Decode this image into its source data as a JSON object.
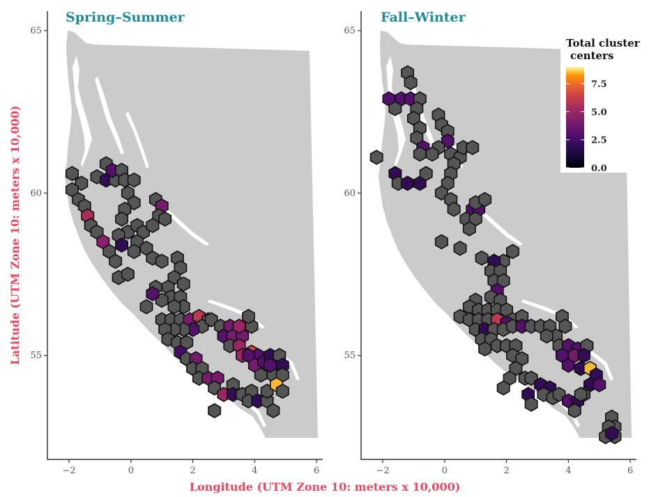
{
  "chart_data": [
    {
      "type": "heatmap",
      "title": "Spring–Summer",
      "xlim": [
        -2.7,
        6.2
      ],
      "ylim": [
        51.8,
        65.6
      ],
      "x_ticks": [
        -2,
        0,
        2,
        4,
        6
      ],
      "y_ticks": [
        55,
        60,
        65
      ],
      "cells": [
        [
          -1.9,
          60.6,
          0
        ],
        [
          -1.6,
          60.3,
          0
        ],
        [
          -1.9,
          60.1,
          0
        ],
        [
          -1.7,
          59.8,
          0
        ],
        [
          -1.5,
          59.6,
          0
        ],
        [
          -1.4,
          59.3,
          5.5
        ],
        [
          -1.3,
          59.0,
          0
        ],
        [
          -1.1,
          58.8,
          0
        ],
        [
          -0.9,
          58.5,
          4.5
        ],
        [
          -0.7,
          58.2,
          0
        ],
        [
          -0.5,
          57.9,
          0
        ],
        [
          -0.4,
          57.4,
          0
        ],
        [
          -0.1,
          57.5,
          0
        ],
        [
          -0.8,
          60.9,
          0
        ],
        [
          -1.1,
          60.5,
          0
        ],
        [
          -0.8,
          60.4,
          2
        ],
        [
          -0.5,
          60.4,
          0
        ],
        [
          -0.6,
          60.7,
          3
        ],
        [
          -0.3,
          60.7,
          0
        ],
        [
          -0.2,
          60.4,
          0
        ],
        [
          0.1,
          60.4,
          0
        ],
        [
          -0.1,
          60.0,
          0
        ],
        [
          0.1,
          59.7,
          0
        ],
        [
          -0.2,
          59.5,
          0
        ],
        [
          -0.3,
          59.2,
          0
        ],
        [
          -0.1,
          58.8,
          0
        ],
        [
          -0.4,
          58.7,
          0
        ],
        [
          -0.3,
          58.4,
          2
        ],
        [
          0.2,
          59.0,
          0
        ],
        [
          0.4,
          58.8,
          0
        ],
        [
          0.2,
          58.5,
          0
        ],
        [
          0.1,
          58.2,
          0
        ],
        [
          0.5,
          58.3,
          0
        ],
        [
          0.7,
          58.0,
          0
        ],
        [
          1.0,
          57.9,
          0
        ],
        [
          0.8,
          59.8,
          0
        ],
        [
          1.0,
          59.6,
          4
        ],
        [
          0.9,
          59.3,
          0
        ],
        [
          0.7,
          59.0,
          0
        ],
        [
          1.1,
          59.2,
          0
        ],
        [
          1.5,
          58.0,
          0
        ],
        [
          1.6,
          57.7,
          0
        ],
        [
          1.4,
          57.4,
          0
        ],
        [
          1.7,
          57.2,
          0
        ],
        [
          1.2,
          57.1,
          0
        ],
        [
          0.8,
          57.1,
          0
        ],
        [
          1.3,
          56.8,
          0
        ],
        [
          1.0,
          56.7,
          0
        ],
        [
          0.7,
          56.9,
          3
        ],
        [
          0.5,
          56.5,
          0
        ],
        [
          1.6,
          56.8,
          0
        ],
        [
          1.7,
          56.5,
          0
        ],
        [
          1.4,
          56.5,
          0
        ],
        [
          1.0,
          56.1,
          0
        ],
        [
          1.3,
          56.1,
          0
        ],
        [
          1.6,
          56.1,
          0
        ],
        [
          1.9,
          56.1,
          4
        ],
        [
          2.2,
          56.2,
          6
        ],
        [
          2.5,
          56.1,
          0
        ],
        [
          2.3,
          55.9,
          0
        ],
        [
          2.0,
          55.8,
          3
        ],
        [
          1.7,
          55.8,
          0
        ],
        [
          1.4,
          55.8,
          0
        ],
        [
          1.1,
          55.8,
          0
        ],
        [
          1.2,
          55.5,
          0
        ],
        [
          1.5,
          55.4,
          0
        ],
        [
          1.8,
          55.4,
          0
        ],
        [
          1.6,
          55.1,
          2.5
        ],
        [
          1.8,
          54.9,
          0
        ],
        [
          2.1,
          54.9,
          4
        ],
        [
          2.0,
          54.6,
          0
        ],
        [
          2.3,
          54.6,
          0
        ],
        [
          2.2,
          54.3,
          0
        ],
        [
          2.5,
          54.3,
          4
        ],
        [
          2.8,
          54.3,
          4
        ],
        [
          2.7,
          54.0,
          0
        ],
        [
          2.6,
          56.1,
          0
        ],
        [
          2.9,
          55.9,
          0
        ],
        [
          3.2,
          55.9,
          4
        ],
        [
          3.0,
          55.6,
          3
        ],
        [
          3.3,
          55.6,
          4
        ],
        [
          3.6,
          55.6,
          4
        ],
        [
          3.9,
          55.9,
          0
        ],
        [
          3.8,
          56.2,
          0
        ],
        [
          3.5,
          55.9,
          5
        ],
        [
          3.2,
          55.3,
          0
        ],
        [
          3.5,
          55.3,
          5
        ],
        [
          3.6,
          55.0,
          5
        ],
        [
          3.9,
          55.1,
          6.5
        ],
        [
          4.1,
          55.0,
          3
        ],
        [
          3.3,
          54.1,
          0
        ],
        [
          3.0,
          53.8,
          5
        ],
        [
          3.3,
          53.8,
          2
        ],
        [
          3.6,
          53.8,
          0
        ],
        [
          3.9,
          53.9,
          0
        ],
        [
          3.8,
          53.6,
          0
        ],
        [
          4.1,
          53.6,
          2
        ],
        [
          4.4,
          53.6,
          0
        ],
        [
          4.6,
          53.3,
          0
        ],
        [
          2.7,
          53.3,
          0
        ],
        [
          4.4,
          53.9,
          0
        ],
        [
          3.8,
          55.0,
          3
        ],
        [
          4.0,
          54.7,
          4
        ],
        [
          4.3,
          54.8,
          3
        ],
        [
          4.5,
          55.0,
          2
        ],
        [
          4.8,
          55.0,
          0
        ],
        [
          4.9,
          54.7,
          2
        ],
        [
          4.6,
          54.4,
          0
        ],
        [
          4.9,
          54.4,
          0
        ],
        [
          4.7,
          54.1,
          8.5
        ],
        [
          4.9,
          53.9,
          0
        ],
        [
          4.5,
          54.7,
          3
        ],
        [
          4.2,
          54.4,
          0
        ]
      ]
    },
    {
      "type": "heatmap",
      "title": "Fall–Winter",
      "xlim": [
        -2.7,
        6.2
      ],
      "ylim": [
        51.8,
        65.6
      ],
      "x_ticks": [
        -2,
        0,
        2,
        4,
        6
      ],
      "y_ticks": [
        55,
        60,
        65
      ],
      "cells": [
        [
          -1.2,
          63.7,
          0
        ],
        [
          -1.1,
          63.4,
          0
        ],
        [
          -1.8,
          62.9,
          3
        ],
        [
          -1.4,
          62.9,
          3
        ],
        [
          -1.1,
          62.9,
          3
        ],
        [
          -0.8,
          62.9,
          0
        ],
        [
          -1.6,
          62.6,
          0
        ],
        [
          -0.9,
          62.6,
          0
        ],
        [
          -1.0,
          62.3,
          0
        ],
        [
          -0.8,
          62.0,
          0
        ],
        [
          -0.9,
          61.7,
          0
        ],
        [
          -0.7,
          61.4,
          3
        ],
        [
          -0.8,
          61.2,
          0
        ],
        [
          -0.2,
          62.4,
          0
        ],
        [
          -0.1,
          62.1,
          0
        ],
        [
          0.1,
          61.9,
          0
        ],
        [
          0.1,
          61.6,
          3
        ],
        [
          -0.2,
          61.4,
          0
        ],
        [
          -0.4,
          61.2,
          0
        ],
        [
          -2.2,
          61.1,
          0
        ],
        [
          -1.6,
          60.6,
          2
        ],
        [
          -1.5,
          60.3,
          0
        ],
        [
          -1.2,
          60.3,
          2
        ],
        [
          -0.8,
          60.3,
          2
        ],
        [
          -0.6,
          60.6,
          0
        ],
        [
          0.2,
          61.2,
          0
        ],
        [
          0.5,
          61.1,
          0
        ],
        [
          0.6,
          61.4,
          0
        ],
        [
          0.9,
          61.4,
          0
        ],
        [
          0.3,
          60.9,
          0
        ],
        [
          0.2,
          60.6,
          0
        ],
        [
          0.1,
          60.3,
          0
        ],
        [
          -0.1,
          60.0,
          0
        ],
        [
          0.2,
          59.8,
          0
        ],
        [
          0.3,
          59.5,
          0
        ],
        [
          0.9,
          59.5,
          3
        ],
        [
          1.1,
          59.5,
          3
        ],
        [
          1.0,
          59.7,
          0
        ],
        [
          1.3,
          59.8,
          0
        ],
        [
          0.7,
          59.2,
          0
        ],
        [
          1.0,
          59.2,
          0
        ],
        [
          0.8,
          58.9,
          0
        ],
        [
          -0.1,
          58.5,
          0
        ],
        [
          0.5,
          58.3,
          0
        ],
        [
          1.2,
          58.0,
          0
        ],
        [
          2.2,
          58.2,
          0
        ],
        [
          1.9,
          57.9,
          0
        ],
        [
          1.6,
          57.9,
          2
        ],
        [
          1.5,
          57.6,
          0
        ],
        [
          1.8,
          57.6,
          0
        ],
        [
          1.6,
          57.3,
          0
        ],
        [
          1.9,
          57.3,
          0
        ],
        [
          1.7,
          57.0,
          3
        ],
        [
          1.5,
          56.8,
          0
        ],
        [
          1.8,
          56.7,
          0
        ],
        [
          1.0,
          56.7,
          0
        ],
        [
          0.8,
          56.5,
          0
        ],
        [
          1.1,
          56.4,
          0
        ],
        [
          1.4,
          56.4,
          0
        ],
        [
          1.7,
          56.4,
          0
        ],
        [
          2.0,
          56.4,
          0
        ],
        [
          0.5,
          56.2,
          0
        ],
        [
          2.2,
          56.1,
          0
        ],
        [
          2.5,
          56.2,
          0
        ],
        [
          0.8,
          56.1,
          0
        ],
        [
          1.1,
          56.1,
          0
        ],
        [
          1.4,
          56.1,
          0
        ],
        [
          1.7,
          56.1,
          6
        ],
        [
          2.0,
          56.0,
          3
        ],
        [
          1.0,
          55.8,
          0
        ],
        [
          1.3,
          55.8,
          2
        ],
        [
          1.6,
          55.8,
          0
        ],
        [
          1.9,
          55.8,
          0
        ],
        [
          1.2,
          55.5,
          0
        ],
        [
          1.5,
          55.5,
          0
        ],
        [
          1.3,
          55.2,
          0
        ],
        [
          1.7,
          55.3,
          0
        ],
        [
          2.0,
          55.3,
          0
        ],
        [
          2.3,
          55.3,
          0
        ],
        [
          2.2,
          55.9,
          0
        ],
        [
          2.5,
          55.9,
          3
        ],
        [
          2.8,
          55.9,
          0
        ],
        [
          3.1,
          55.9,
          0
        ],
        [
          3.4,
          55.9,
          0
        ],
        [
          3.6,
          55.6,
          0
        ],
        [
          3.3,
          55.6,
          0
        ],
        [
          3.8,
          56.2,
          0
        ],
        [
          3.9,
          55.9,
          0
        ],
        [
          3.7,
          55.3,
          0
        ],
        [
          4.0,
          55.3,
          3
        ],
        [
          4.3,
          55.2,
          3
        ],
        [
          4.6,
          55.3,
          0
        ],
        [
          3.8,
          55.0,
          3
        ],
        [
          4.0,
          54.7,
          3
        ],
        [
          4.2,
          55.0,
          4
        ],
        [
          4.5,
          55.0,
          2
        ],
        [
          4.4,
          54.6,
          2
        ],
        [
          4.7,
          54.6,
          8.5
        ],
        [
          4.9,
          54.4,
          2
        ],
        [
          4.7,
          54.1,
          2
        ],
        [
          5.0,
          54.1,
          3
        ],
        [
          2.2,
          55.0,
          0
        ],
        [
          2.5,
          54.9,
          0
        ],
        [
          2.3,
          54.6,
          0
        ],
        [
          2.1,
          54.3,
          0
        ],
        [
          1.9,
          54.0,
          0
        ],
        [
          2.6,
          54.3,
          0
        ],
        [
          2.8,
          54.3,
          0
        ],
        [
          3.1,
          54.1,
          2
        ],
        [
          3.4,
          54.0,
          2
        ],
        [
          3.2,
          53.8,
          0
        ],
        [
          3.5,
          53.7,
          0
        ],
        [
          3.7,
          53.8,
          0
        ],
        [
          2.7,
          53.8,
          2
        ],
        [
          2.8,
          53.5,
          0
        ],
        [
          4.0,
          53.6,
          3
        ],
        [
          4.3,
          53.6,
          2
        ],
        [
          4.5,
          53.8,
          0
        ],
        [
          4.2,
          53.3,
          0
        ],
        [
          4.4,
          53.8,
          0
        ],
        [
          5.4,
          53.1,
          0
        ],
        [
          5.5,
          52.8,
          0
        ],
        [
          5.3,
          52.8,
          0
        ],
        [
          5.5,
          52.5,
          0
        ],
        [
          5.2,
          52.5,
          0
        ],
        [
          5.4,
          52.6,
          2
        ]
      ]
    }
  ],
  "legend": {
    "title_line1": "Total cluster",
    "title_line2": "centers",
    "ticks": [
      "7.5",
      "5.0",
      "2.5",
      "0.0"
    ],
    "tick_values": [
      7.5,
      5.0,
      2.5,
      0.0
    ],
    "max": 9
  },
  "axes": {
    "x_title": "Longitude (UTM Zone 10: meters x 10,000)",
    "y_title": "Latitude (UTM Zone 10: meters x 10,000)"
  },
  "colors": {
    "land": "#cbcbcb",
    "title": "#1f8b98",
    "axis_title": "#e8475f",
    "zero_fill": "#555555"
  }
}
